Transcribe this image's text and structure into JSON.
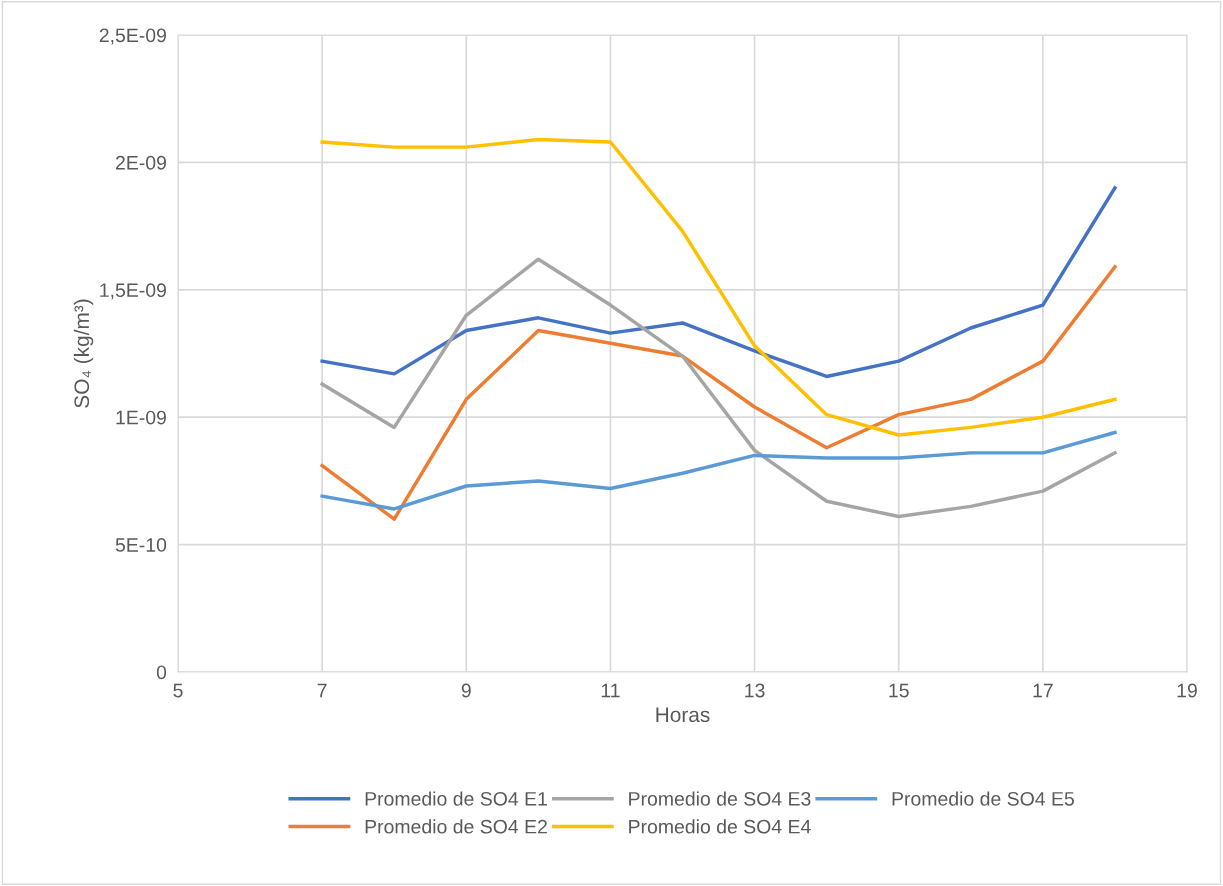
{
  "chart_data": {
    "type": "line",
    "xlabel": "Horas",
    "ylabel": "SO₄ (kg/m³)",
    "x": [
      7,
      8,
      9,
      10,
      11,
      12,
      13,
      14,
      15,
      16,
      17,
      18
    ],
    "xlim": [
      5,
      19
    ],
    "xticks": [
      5,
      7,
      9,
      11,
      13,
      15,
      17,
      19
    ],
    "ylim": [
      0,
      2.5e-09
    ],
    "yticks": [
      {
        "value": 0,
        "label": "0"
      },
      {
        "value": 5e-10,
        "label": "5E-10"
      },
      {
        "value": 1e-09,
        "label": "1E-09"
      },
      {
        "value": 1.5e-09,
        "label": "1,5E-09"
      },
      {
        "value": 2e-09,
        "label": "2E-09"
      },
      {
        "value": 2.5e-09,
        "label": "2,5E-09"
      }
    ],
    "grid": true,
    "legend": "bottom",
    "marker": "none",
    "line_style": "solid",
    "series": [
      {
        "name": "Promedio de SO4 E1",
        "color": "#4472c4",
        "values": [
          1.22e-09,
          1.17e-09,
          1.34e-09,
          1.39e-09,
          1.33e-09,
          1.37e-09,
          1.26e-09,
          1.16e-09,
          1.22e-09,
          1.35e-09,
          1.44e-09,
          1.9e-09
        ]
      },
      {
        "name": "Promedio de SO4 E2",
        "color": "#ed7d31",
        "values": [
          8.1e-10,
          6e-10,
          1.07e-09,
          1.34e-09,
          1.29e-09,
          1.24e-09,
          1.04e-09,
          8.8e-10,
          1.01e-09,
          1.07e-09,
          1.22e-09,
          1.59e-09
        ]
      },
      {
        "name": "Promedio de SO4 E3",
        "color": "#a5a5a5",
        "values": [
          1.13e-09,
          9.6e-10,
          1.4e-09,
          1.62e-09,
          1.44e-09,
          1.24e-09,
          8.7e-10,
          6.7e-10,
          6.1e-10,
          6.5e-10,
          7.1e-10,
          8.6e-10
        ]
      },
      {
        "name": "Promedio de SO4 E4",
        "color": "#ffc000",
        "values": [
          2.08e-09,
          2.06e-09,
          2.06e-09,
          2.09e-09,
          2.08e-09,
          1.73e-09,
          1.28e-09,
          1.01e-09,
          9.3e-10,
          9.6e-10,
          1e-09,
          1.07e-09
        ]
      },
      {
        "name": "Promedio de SO4 E5",
        "color": "#5b9bd5",
        "values": [
          6.9e-10,
          6.4e-10,
          7.3e-10,
          7.5e-10,
          7.2e-10,
          7.8e-10,
          8.5e-10,
          8.4e-10,
          8.4e-10,
          8.6e-10,
          8.6e-10,
          9.4e-10
        ]
      }
    ]
  }
}
